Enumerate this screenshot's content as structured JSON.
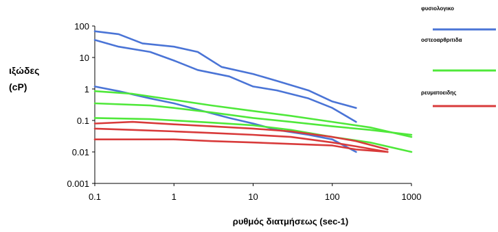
{
  "chart_data": {
    "type": "line",
    "xscale": "log",
    "yscale": "log",
    "xlim": [
      0.1,
      1000
    ],
    "ylim": [
      0.001,
      100
    ],
    "x_ticks": [
      "0.1",
      "1",
      "10",
      "100",
      "1000"
    ],
    "y_ticks": [
      "0.001",
      "0.01",
      "0.1",
      "1",
      "10",
      "100"
    ],
    "xlabel": "ρυθμός διατμήσεως (sec-1)",
    "ylabel": [
      "ιξώδες",
      "(cP)"
    ],
    "grid": false,
    "legend_position": "right",
    "legend": [
      {
        "label": "φυσιολογικο",
        "color": "#4a74d6"
      },
      {
        "label": "οστεοαρθριτιδα",
        "color": "#4fe83a"
      },
      {
        "label": "ρευματοειδης",
        "color": "#d83a3a"
      }
    ],
    "series": [
      {
        "group": "φυσιολογικο",
        "color": "#4a74d6",
        "points": [
          [
            0.1,
            68
          ],
          [
            0.2,
            55
          ],
          [
            0.4,
            28
          ],
          [
            1,
            22
          ],
          [
            2,
            15
          ],
          [
            4,
            5
          ],
          [
            10,
            3
          ],
          [
            20,
            1.8
          ],
          [
            50,
            0.9
          ],
          [
            100,
            0.4
          ],
          [
            200,
            0.25
          ]
        ]
      },
      {
        "group": "φυσιολογικο",
        "color": "#4a74d6",
        "points": [
          [
            0.1,
            36
          ],
          [
            0.2,
            22
          ],
          [
            0.5,
            15
          ],
          [
            1,
            8
          ],
          [
            2,
            4
          ],
          [
            5,
            2.5
          ],
          [
            10,
            1.2
          ],
          [
            20,
            0.9
          ],
          [
            50,
            0.5
          ],
          [
            100,
            0.25
          ],
          [
            200,
            0.09
          ]
        ]
      },
      {
        "group": "φυσιολογικο",
        "color": "#4a74d6",
        "points": [
          [
            0.1,
            1.2
          ],
          [
            0.2,
            0.85
          ],
          [
            0.5,
            0.5
          ],
          [
            1,
            0.35
          ],
          [
            2,
            0.22
          ],
          [
            5,
            0.12
          ],
          [
            10,
            0.08
          ],
          [
            20,
            0.05
          ],
          [
            50,
            0.035
          ],
          [
            100,
            0.025
          ],
          [
            200,
            0.01
          ]
        ]
      },
      {
        "group": "οστεοαρθριτιδα",
        "color": "#4fe83a",
        "points": [
          [
            0.1,
            0.85
          ],
          [
            0.3,
            0.7
          ],
          [
            1,
            0.45
          ],
          [
            3,
            0.3
          ],
          [
            10,
            0.2
          ],
          [
            30,
            0.14
          ],
          [
            100,
            0.09
          ],
          [
            300,
            0.06
          ],
          [
            1000,
            0.03
          ]
        ]
      },
      {
        "group": "οστεοαρθριτιδα",
        "color": "#4fe83a",
        "points": [
          [
            0.1,
            0.35
          ],
          [
            0.5,
            0.3
          ],
          [
            1,
            0.25
          ],
          [
            3,
            0.18
          ],
          [
            10,
            0.12
          ],
          [
            30,
            0.09
          ],
          [
            100,
            0.065
          ],
          [
            300,
            0.05
          ],
          [
            1000,
            0.035
          ]
        ]
      },
      {
        "group": "οστεοαρθριτιδα",
        "color": "#4fe83a",
        "points": [
          [
            0.1,
            0.12
          ],
          [
            0.5,
            0.11
          ],
          [
            1,
            0.1
          ],
          [
            3,
            0.085
          ],
          [
            10,
            0.07
          ],
          [
            30,
            0.05
          ],
          [
            100,
            0.03
          ],
          [
            300,
            0.02
          ],
          [
            1000,
            0.01
          ]
        ]
      },
      {
        "group": "ρευματοειδης",
        "color": "#d83a3a",
        "points": [
          [
            0.1,
            0.08
          ],
          [
            0.3,
            0.09
          ],
          [
            1,
            0.075
          ],
          [
            3,
            0.065
          ],
          [
            10,
            0.055
          ],
          [
            30,
            0.045
          ],
          [
            100,
            0.03
          ],
          [
            200,
            0.022
          ],
          [
            500,
            0.012
          ]
        ]
      },
      {
        "group": "ρευματοειδης",
        "color": "#d83a3a",
        "points": [
          [
            0.1,
            0.055
          ],
          [
            0.3,
            0.05
          ],
          [
            1,
            0.045
          ],
          [
            3,
            0.04
          ],
          [
            10,
            0.035
          ],
          [
            30,
            0.03
          ],
          [
            100,
            0.02
          ],
          [
            200,
            0.015
          ],
          [
            500,
            0.01
          ]
        ]
      },
      {
        "group": "ρευματοειδης",
        "color": "#d83a3a",
        "points": [
          [
            0.1,
            0.025
          ],
          [
            0.5,
            0.025
          ],
          [
            1,
            0.025
          ],
          [
            3,
            0.022
          ],
          [
            10,
            0.02
          ],
          [
            30,
            0.018
          ],
          [
            100,
            0.016
          ],
          [
            200,
            0.012
          ],
          [
            500,
            0.01
          ]
        ]
      }
    ]
  }
}
